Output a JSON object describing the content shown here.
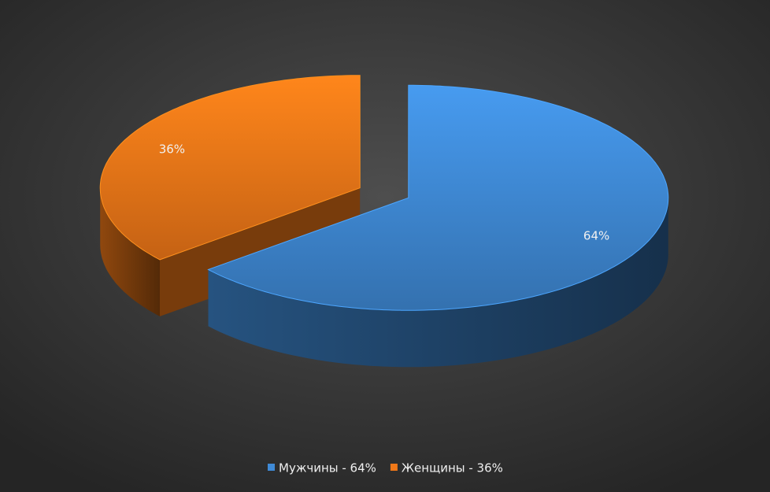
{
  "chart_data": {
    "type": "pie",
    "categories": [
      "Мужчины - 64%",
      "Женщины - 36%"
    ],
    "values": [
      64,
      36
    ],
    "value_labels": [
      "64%",
      "36%"
    ],
    "colors": [
      "#3f8ad6",
      "#f07818"
    ],
    "legend": "bottom"
  }
}
